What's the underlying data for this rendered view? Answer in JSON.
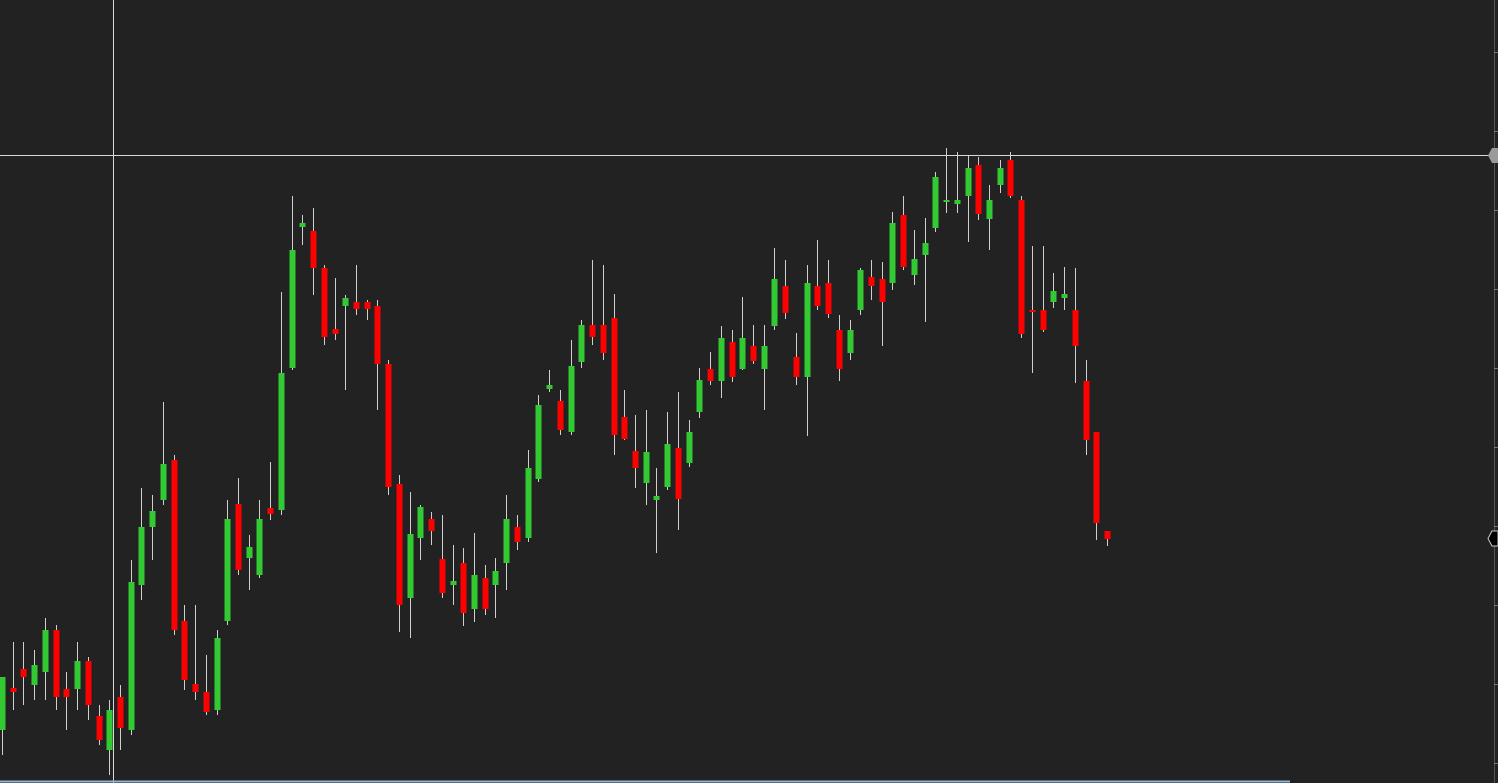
{
  "chart_data": {
    "type": "candlestick",
    "ylim": [
      0,
      783
    ],
    "up_color": "#33c933",
    "down_color": "#ff0000",
    "open": [
      53,
      95,
      114,
      98,
      111,
      153,
      94,
      94,
      122,
      67,
      33,
      86,
      53,
      198,
      256,
      283,
      323,
      162,
      99,
      91,
      73,
      162,
      279,
      225,
      208,
      275,
      273,
      415,
      556,
      552,
      515,
      454,
      477,
      481,
      481,
      477,
      419,
      299,
      185,
      245,
      264,
      224,
      198,
      220,
      174,
      205,
      198,
      220,
      256,
      245,
      304,
      394,
      382,
      351,
      421,
      458,
      458,
      465,
      366,
      332,
      300,
      283,
      296,
      335,
      320,
      371,
      414,
      402,
      441,
      414,
      437,
      414,
      457,
      497,
      426,
      406,
      497,
      500,
      453,
      430,
      473,
      506,
      504,
      500,
      568,
      508,
      528,
      555,
      581,
      579,
      587,
      618,
      564,
      598,
      623,
      583,
      473,
      473,
      481,
      485,
      473,
      402,
      351,
      252
    ],
    "high": [
      106,
      141,
      141,
      133,
      165,
      158,
      111,
      141,
      126,
      78,
      83,
      98,
      223,
      295,
      288,
      381,
      328,
      178,
      178,
      128,
      153,
      283,
      305,
      248,
      283,
      321,
      491,
      587,
      568,
      575,
      518,
      505,
      488,
      518,
      483,
      483,
      423,
      308,
      291,
      278,
      271,
      268,
      238,
      235,
      250,
      218,
      225,
      288,
      268,
      333,
      388,
      413,
      393,
      443,
      463,
      523,
      518,
      489,
      393,
      368,
      373,
      315,
      371,
      391,
      363,
      415,
      431,
      457,
      453,
      486,
      458,
      458,
      535,
      523,
      450,
      518,
      543,
      523,
      468,
      463,
      515,
      523,
      521,
      571,
      587,
      553,
      565,
      611,
      635,
      631,
      628,
      626,
      598,
      623,
      631,
      587,
      537,
      537,
      510,
      516,
      515,
      423,
      351,
      252
    ],
    "low": [
      28,
      73,
      78,
      83,
      83,
      73,
      53,
      73,
      63,
      38,
      8,
      33,
      48,
      183,
      223,
      278,
      148,
      93,
      83,
      68,
      68,
      158,
      208,
      193,
      205,
      263,
      268,
      413,
      538,
      488,
      438,
      443,
      393,
      468,
      463,
      373,
      288,
      151,
      145,
      223,
      238,
      185,
      178,
      157,
      161,
      168,
      165,
      193,
      233,
      241,
      301,
      391,
      348,
      348,
      415,
      438,
      423,
      328,
      343,
      295,
      278,
      230,
      293,
      253,
      316,
      365,
      398,
      385,
      401,
      413,
      419,
      373,
      453,
      464,
      398,
      347,
      473,
      465,
      402,
      423,
      468,
      483,
      437,
      493,
      513,
      498,
      461,
      551,
      570,
      570,
      541,
      563,
      533,
      590,
      585,
      445,
      410,
      451,
      475,
      473,
      400,
      328,
      243,
      237
    ],
    "close": [
      106,
      91,
      106,
      118,
      153,
      86,
      86,
      122,
      78,
      43,
      73,
      55,
      201,
      256,
      272,
      319,
      153,
      103,
      91,
      71,
      145,
      264,
      213,
      236,
      264,
      269,
      410,
      533,
      560,
      515,
      446,
      449,
      485,
      474,
      474,
      419,
      296,
      178,
      249,
      276,
      252,
      190,
      202,
      170,
      208,
      174,
      212,
      264,
      241,
      315,
      378,
      398,
      353,
      417,
      458,
      446,
      430,
      348,
      344,
      315,
      331,
      287,
      339,
      284,
      351,
      403,
      402,
      445,
      406,
      445,
      422,
      437,
      504,
      470,
      406,
      500,
      477,
      469,
      414,
      453,
      513,
      497,
      481,
      560,
      516,
      524,
      540,
      606,
      583,
      583,
      615,
      569,
      583,
      615,
      587,
      449,
      471,
      453,
      492,
      489,
      437,
      343,
      260,
      244
    ]
  }
}
